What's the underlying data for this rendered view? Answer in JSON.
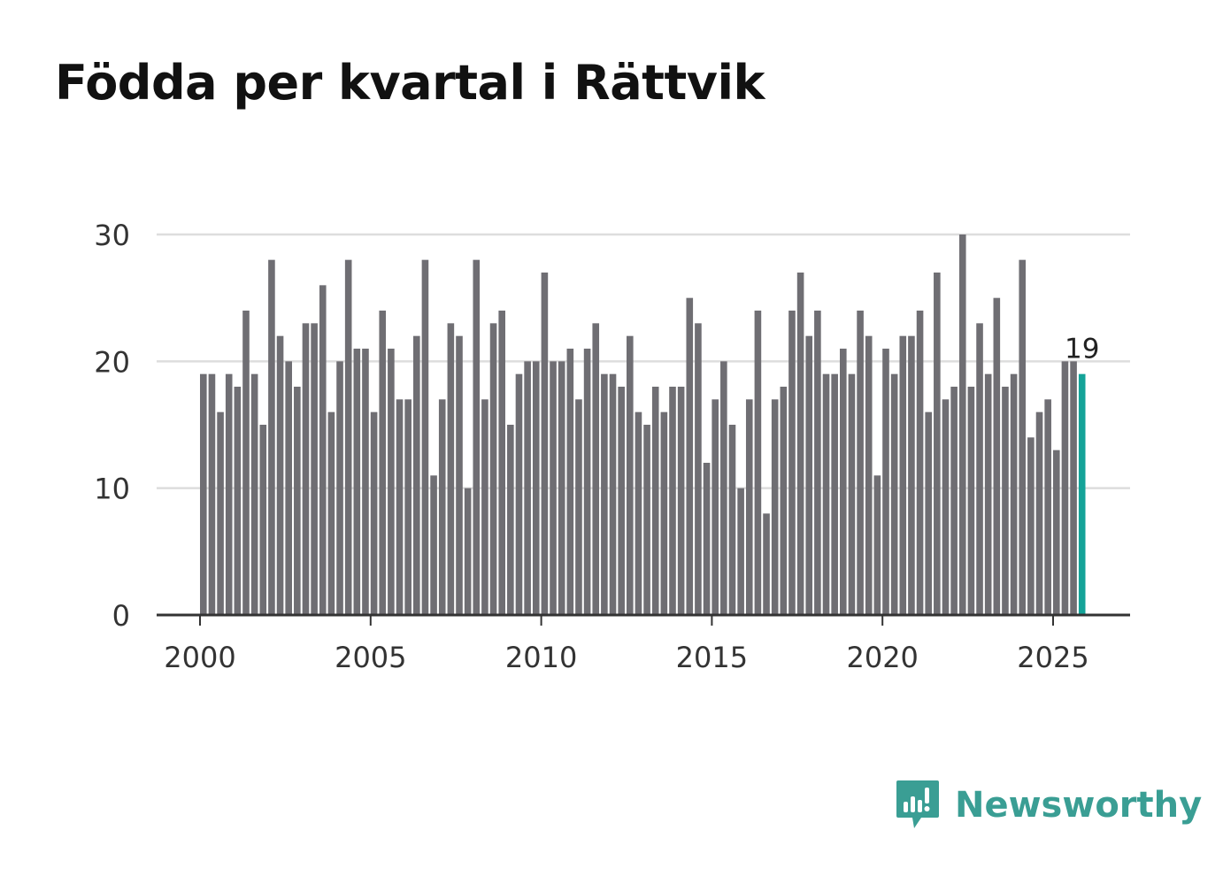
{
  "title": "Födda per kvartal i Rättvik",
  "brand": {
    "name": "Newsworthy",
    "color": "#3a9e94"
  },
  "colors": {
    "bar": "#6f6e73",
    "highlight": "#14a398",
    "grid": "#dddddd",
    "axis": "#333333"
  },
  "chart_data": {
    "type": "bar",
    "title": "Födda per kvartal i Rättvik",
    "xlabel": "",
    "ylabel": "",
    "ylim": [
      0,
      30
    ],
    "yticks": [
      0,
      10,
      20,
      30
    ],
    "xticks": [
      2000,
      2005,
      2010,
      2015,
      2020,
      2025
    ],
    "start_year": 2000,
    "periods_per_year": 4,
    "last_value_label": "19",
    "values": [
      19,
      19,
      16,
      19,
      18,
      24,
      19,
      15,
      28,
      22,
      20,
      18,
      23,
      23,
      26,
      16,
      20,
      28,
      21,
      21,
      16,
      24,
      21,
      17,
      17,
      22,
      28,
      11,
      17,
      23,
      22,
      10,
      28,
      17,
      23,
      24,
      15,
      19,
      20,
      20,
      27,
      20,
      20,
      21,
      17,
      21,
      23,
      19,
      19,
      18,
      22,
      16,
      15,
      18,
      16,
      18,
      18,
      25,
      23,
      12,
      17,
      20,
      15,
      10,
      17,
      24,
      8,
      17,
      18,
      24,
      27,
      22,
      24,
      19,
      19,
      21,
      19,
      24,
      22,
      11,
      21,
      19,
      22,
      22,
      24,
      16,
      27,
      17,
      18,
      30,
      18,
      23,
      19,
      25,
      18,
      19,
      28,
      14,
      16,
      17,
      13,
      20,
      20,
      19
    ]
  }
}
